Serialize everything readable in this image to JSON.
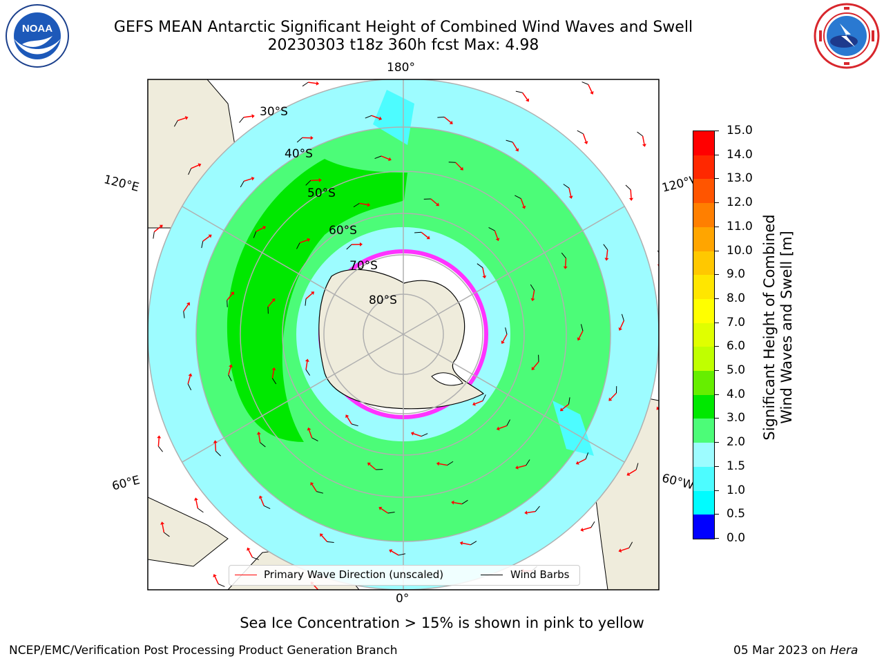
{
  "title": {
    "line1": "GEFS MEAN Antarctic Significant Height of Combined Wind Waves and Swell",
    "line2": "20230303 t18z 360h fcst   Max: 4.98"
  },
  "logos": {
    "noaa": {
      "text": "NOAA",
      "icon": "noaa-seagull-icon"
    },
    "nws": {
      "icon": "national-weather-service-icon"
    }
  },
  "map": {
    "projection": "south-polar-stereographic",
    "longitude_labels": {
      "top": "180°",
      "bottom": "0°",
      "upper_left": "120°E",
      "lower_left": "60°E",
      "upper_right": "120°W",
      "lower_right": "60°W"
    },
    "latitude_labels": [
      "30°S",
      "40°S",
      "50°S",
      "60°S",
      "70°S",
      "80°S"
    ],
    "field_colors": {
      "ocean_light": "#9dfcff",
      "ocean_cyan": "#4dfcff",
      "wave_3_4m": "#4cfc78",
      "wave_4_5m": "#00e800",
      "land": "#efecdc",
      "ice_edge": "#ff33ff"
    }
  },
  "colorbar": {
    "label_line1": "Significant Height of Combined",
    "label_line2": "Wind Waves and Swell [m]",
    "ticks": [
      "15.0",
      "14.0",
      "13.0",
      "12.0",
      "11.0",
      "10.0",
      "9.0",
      "8.0",
      "7.0",
      "6.0",
      "5.0",
      "4.0",
      "3.0",
      "2.0",
      "1.5",
      "1.0",
      "0.5",
      "0.0"
    ],
    "colors_top_to_bottom": [
      "#ff0000",
      "#ff2800",
      "#ff5500",
      "#ff7f00",
      "#ffa500",
      "#ffc800",
      "#ffe600",
      "#ffff00",
      "#e0ff00",
      "#c0ff00",
      "#66ee00",
      "#00e800",
      "#4cfc78",
      "#9dfcff",
      "#4dfcff",
      "#00fcff",
      "#0080ff",
      "#0000ff"
    ]
  },
  "legend": {
    "primary_wave": "Primary Wave Direction (unscaled)",
    "wind_barbs": "Wind Barbs",
    "primary_wave_color": "#ff0000",
    "wind_barb_color": "#000000"
  },
  "note": "Sea Ice Concentration > 15% is shown in pink to yellow",
  "footer": {
    "left": "NCEP/EMC/Verification Post Processing Product Generation Branch",
    "date": "05 Mar 2023 on ",
    "host": "Hera"
  }
}
